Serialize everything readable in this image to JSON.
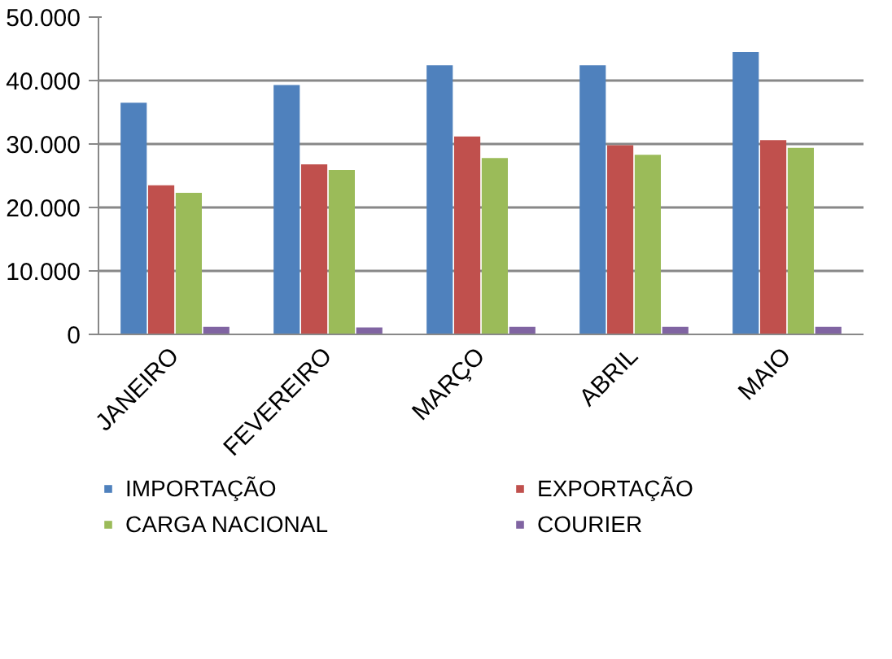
{
  "chart_data": {
    "type": "bar",
    "categories": [
      "JANEIRO",
      "FEVEREIRO",
      "MARÇO",
      "ABRIL",
      "MAIO"
    ],
    "series": [
      {
        "name": "IMPORTAÇÃO",
        "color": "#4f81bd",
        "values": [
          36500,
          39300,
          42400,
          42400,
          44500
        ]
      },
      {
        "name": "EXPORTAÇÃO",
        "color": "#c0504d",
        "values": [
          23500,
          26800,
          31200,
          29800,
          30600
        ]
      },
      {
        "name": "CARGA NACIONAL",
        "color": "#9bbb59",
        "values": [
          22300,
          25900,
          27800,
          28300,
          29400
        ]
      },
      {
        "name": "COURIER",
        "color": "#8064a2",
        "values": [
          1200,
          1100,
          1200,
          1200,
          1200
        ]
      }
    ],
    "ylim": [
      0,
      50000
    ],
    "yticks": [
      {
        "value": 0,
        "label": "0"
      },
      {
        "value": 10000,
        "label": "10.000"
      },
      {
        "value": 20000,
        "label": "20.000"
      },
      {
        "value": 30000,
        "label": "30.000"
      },
      {
        "value": 40000,
        "label": "40.000"
      },
      {
        "value": 50000,
        "label": "50.000"
      }
    ],
    "grid": "y",
    "legend": "bottom"
  }
}
